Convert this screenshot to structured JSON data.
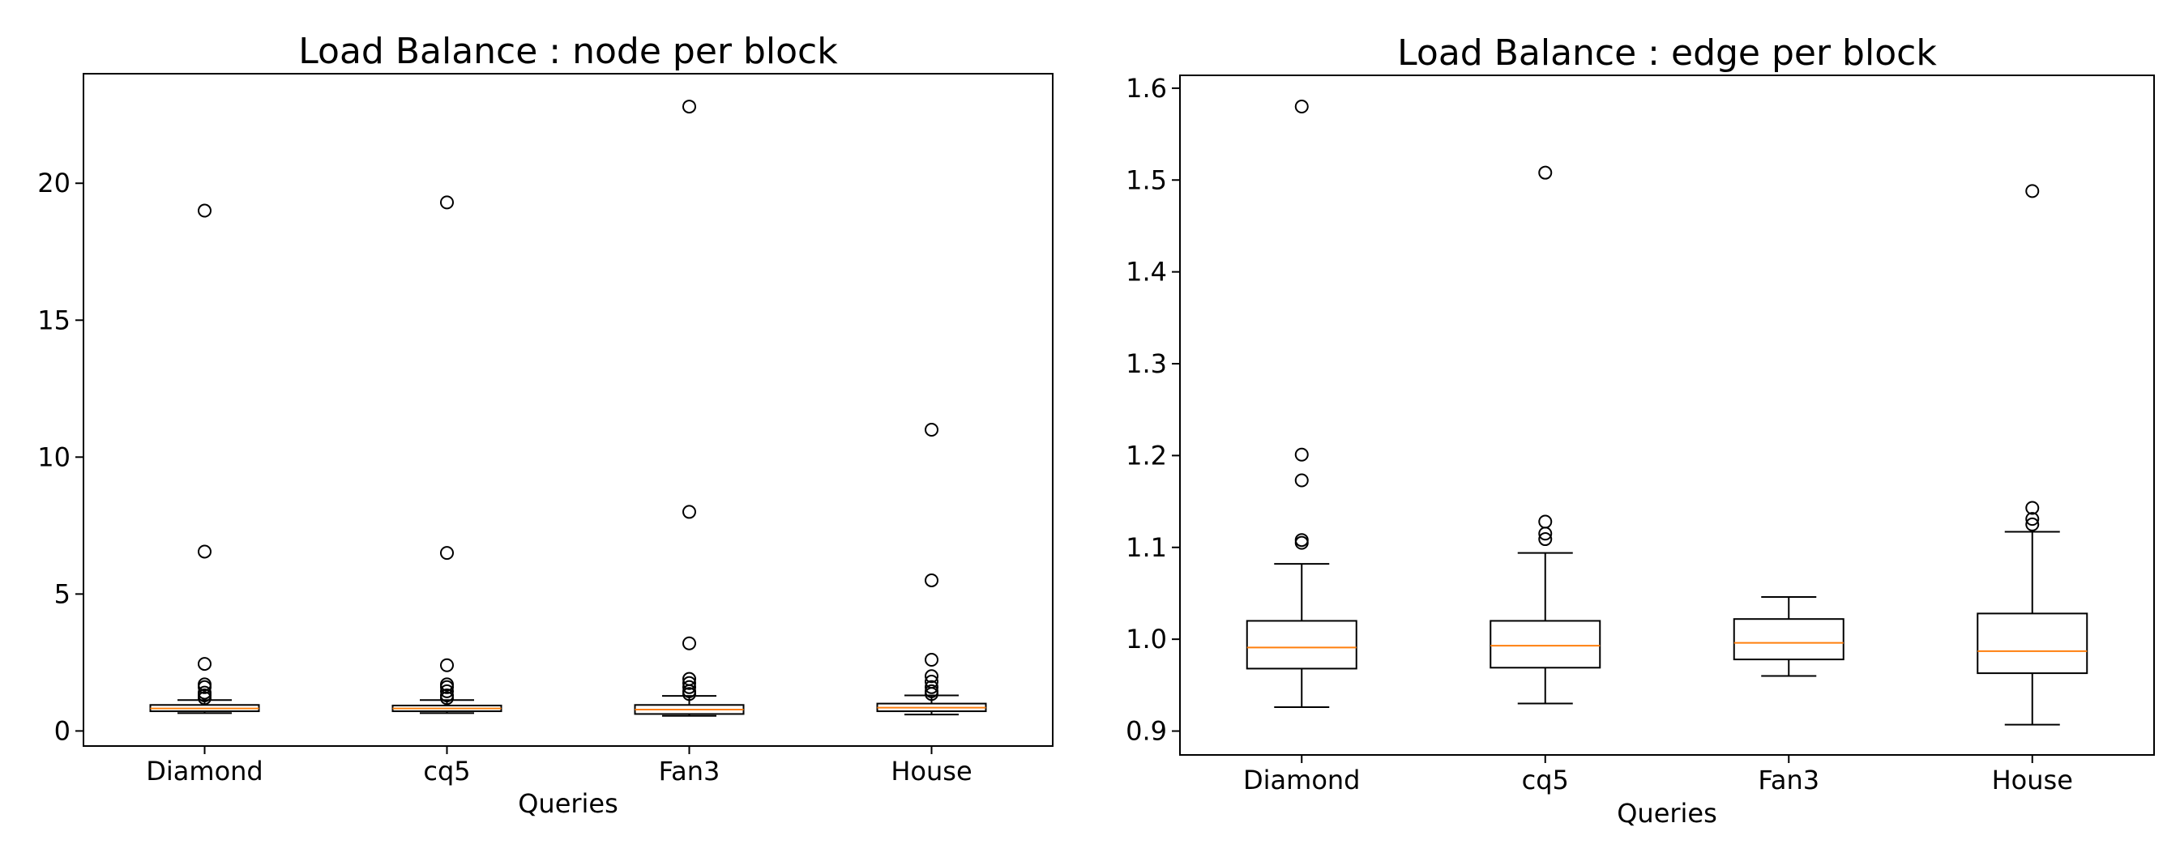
{
  "colors": {
    "box": "#000000",
    "median": "#ff7f0e",
    "outlier": "#000000",
    "background": "#ffffff"
  },
  "chart_data": [
    {
      "type": "box",
      "title": "Load Balance : node per block",
      "xlabel": "Queries",
      "ylabel": "",
      "ylim": [
        -0.55,
        24.0
      ],
      "yticks": [
        0,
        5,
        10,
        15,
        20
      ],
      "ytick_labels": [
        "0",
        "5",
        "10",
        "15",
        "20"
      ],
      "grid": false,
      "categories": [
        "Diamond",
        "cq5",
        "Fan3",
        "House"
      ],
      "boxes": [
        {
          "whisker_low": 0.65,
          "q1": 0.72,
          "median": 0.82,
          "q3": 0.95,
          "whisker_high": 1.13,
          "outliers": [
            1.2,
            1.3,
            1.4,
            1.6,
            1.7,
            2.45,
            6.55,
            19.0
          ]
        },
        {
          "whisker_low": 0.65,
          "q1": 0.72,
          "median": 0.82,
          "q3": 0.93,
          "whisker_high": 1.13,
          "outliers": [
            1.2,
            1.3,
            1.45,
            1.6,
            1.7,
            2.4,
            6.5,
            19.3
          ]
        },
        {
          "whisker_low": 0.55,
          "q1": 0.62,
          "median": 0.78,
          "q3": 0.95,
          "whisker_high": 1.28,
          "outliers": [
            1.35,
            1.45,
            1.6,
            1.75,
            1.9,
            3.2,
            8.0,
            22.8
          ]
        },
        {
          "whisker_low": 0.6,
          "q1": 0.72,
          "median": 0.85,
          "q3": 1.0,
          "whisker_high": 1.3,
          "outliers": [
            1.35,
            1.45,
            1.6,
            1.8,
            2.0,
            2.6,
            5.5,
            11.0
          ]
        }
      ]
    },
    {
      "type": "box",
      "title": "Load Balance : edge per block",
      "xlabel": "Queries",
      "ylabel": "",
      "ylim": [
        0.874,
        1.614
      ],
      "yticks": [
        0.9,
        1.0,
        1.1,
        1.2,
        1.3,
        1.4,
        1.5,
        1.6
      ],
      "ytick_labels": [
        "0.9",
        "1.0",
        "1.1",
        "1.2",
        "1.3",
        "1.4",
        "1.5",
        "1.6"
      ],
      "grid": false,
      "categories": [
        "Diamond",
        "cq5",
        "Fan3",
        "House"
      ],
      "boxes": [
        {
          "whisker_low": 0.926,
          "q1": 0.968,
          "median": 0.991,
          "q3": 1.02,
          "whisker_high": 1.082,
          "outliers": [
            1.105,
            1.108,
            1.173,
            1.201,
            1.58
          ]
        },
        {
          "whisker_low": 0.93,
          "q1": 0.969,
          "median": 0.993,
          "q3": 1.02,
          "whisker_high": 1.094,
          "outliers": [
            1.109,
            1.115,
            1.128,
            1.508
          ]
        },
        {
          "whisker_low": 0.96,
          "q1": 0.978,
          "median": 0.996,
          "q3": 1.022,
          "whisker_high": 1.046,
          "outliers": []
        },
        {
          "whisker_low": 0.907,
          "q1": 0.963,
          "median": 0.987,
          "q3": 1.028,
          "whisker_high": 1.117,
          "outliers": [
            1.125,
            1.131,
            1.143,
            1.488
          ]
        }
      ]
    }
  ]
}
